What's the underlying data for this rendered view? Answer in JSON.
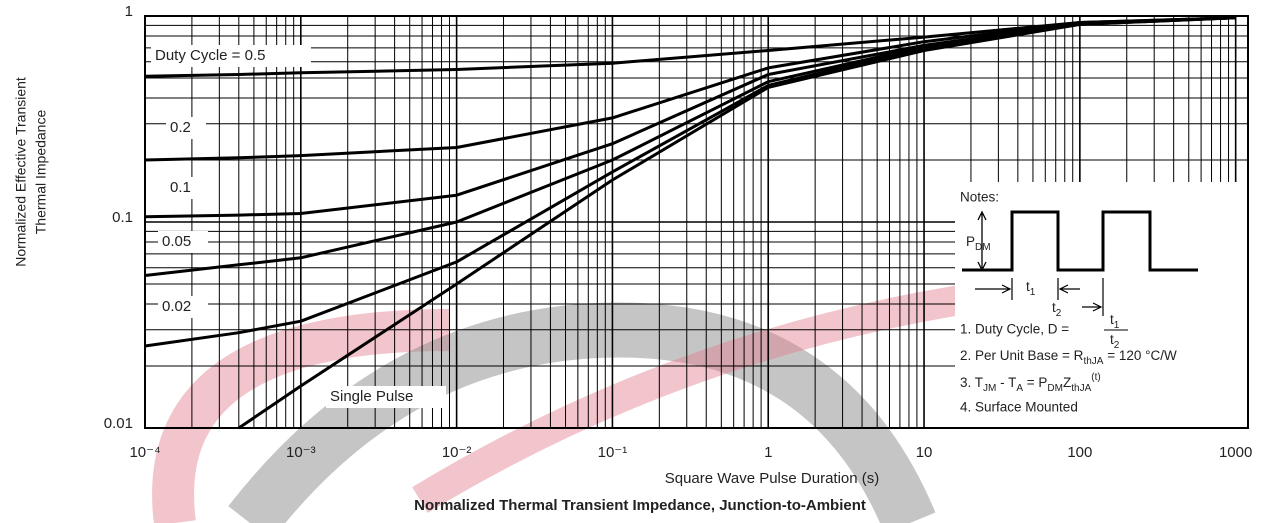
{
  "chart_data": {
    "type": "line",
    "title": "Normalized Thermal Transient Impedance, Junction-to-Ambient",
    "x_label": "Square Wave Pulse Duration (s)",
    "y_label": [
      "Normalized Effective Transient",
      "Thermal Impedance"
    ],
    "x": [
      0.0001,
      0.0004,
      0.001,
      0.01,
      0.1,
      1,
      10,
      100,
      1000
    ],
    "series": [
      {
        "name": "Duty Cycle = 0.5",
        "color": "#000000",
        "values": [
          0.51,
          0.52,
          0.53,
          0.55,
          0.59,
          0.68,
          0.79,
          0.93,
          0.98
        ]
      },
      {
        "name": "0.2",
        "color": "#000000",
        "values": [
          0.2,
          0.205,
          0.21,
          0.23,
          0.32,
          0.56,
          0.75,
          0.93,
          0.98
        ]
      },
      {
        "name": "0.1",
        "color": "#000000",
        "values": [
          0.106,
          0.108,
          0.11,
          0.135,
          0.24,
          0.52,
          0.72,
          0.92,
          0.98
        ]
      },
      {
        "name": "0.05",
        "color": "#000000",
        "values": [
          0.055,
          0.062,
          0.067,
          0.1,
          0.2,
          0.48,
          0.71,
          0.92,
          0.98
        ]
      },
      {
        "name": "0.02",
        "color": "#000000",
        "values": [
          0.025,
          0.029,
          0.033,
          0.064,
          0.175,
          0.46,
          0.7,
          0.91,
          0.98
        ]
      },
      {
        "name": "Single Pulse",
        "color": "#000000",
        "values": [
          null,
          0.01,
          0.016,
          0.05,
          0.16,
          0.45,
          0.68,
          0.91,
          0.98
        ]
      }
    ],
    "log_x": true,
    "log_y": true,
    "grid": true,
    "xlim": [
      0.0001,
      1200
    ],
    "ylim": [
      0.01,
      1
    ],
    "xticks": [
      {
        "value": 0.0001,
        "label": "10⁻⁴"
      },
      {
        "value": 0.001,
        "label": "10⁻³"
      },
      {
        "value": 0.01,
        "label": "10⁻²"
      },
      {
        "value": 0.1,
        "label": "10⁻¹"
      },
      1,
      10,
      100,
      1000
    ],
    "yticks": [
      0.01,
      0.1,
      1
    ],
    "notes": {
      "heading": "Notes:",
      "pdm": [
        "P",
        "DM"
      ],
      "t1": [
        "t",
        "1"
      ],
      "t2": [
        "t",
        "2"
      ],
      "items": [
        [
          "1. Duty Cycle, D = "
        ],
        [
          "2. Per Unit Base = R",
          "thJA",
          " = 120 °C/W"
        ],
        [
          "3. T",
          "JM",
          " - T",
          "A",
          " = P",
          "DM",
          "Z",
          "thJA",
          "(t)"
        ],
        [
          "4. Surface Mounted"
        ]
      ]
    }
  }
}
